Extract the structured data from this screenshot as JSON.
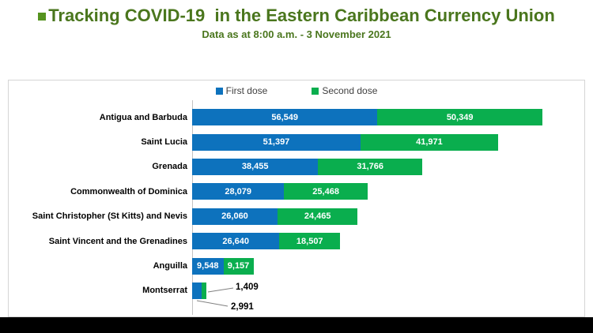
{
  "header": {
    "title": "Tracking COVID-19  in the Eastern Caribbean Currency Union",
    "subtitle": "Data as at 8:00 a.m. - 3 November 2021"
  },
  "chart_data": {
    "type": "bar",
    "orientation": "horizontal",
    "stacked": true,
    "legend_position": "top",
    "categories": [
      "Antigua and Barbuda",
      "Saint Lucia",
      "Grenada",
      "Commonwealth of Dominica",
      "Saint Christopher (St Kitts) and Nevis",
      "Saint Vincent and the Grenadines",
      "Anguilla",
      "Montserrat"
    ],
    "series": [
      {
        "name": "First dose",
        "color": "#0d72bd",
        "values": [
          56549,
          51397,
          38455,
          28079,
          26060,
          26640,
          9548,
          2991
        ],
        "labels": [
          "56,549",
          "51,397",
          "38,455",
          "28,079",
          "26,060",
          "26,640",
          "9,548",
          "2,991"
        ]
      },
      {
        "name": "Second dose",
        "color": "#0aae4e",
        "values": [
          50349,
          41971,
          31766,
          25468,
          24465,
          18507,
          9157,
          1409
        ],
        "labels": [
          "50,349",
          "41,971",
          "31,766",
          "25,468",
          "24,465",
          "18,507",
          "9,157",
          "1,409"
        ]
      }
    ]
  },
  "colors": {
    "title_green": "#4a761d",
    "first_dose_blue": "#0d72bd",
    "second_dose_green": "#0aae4e",
    "footer_bar": "#000000"
  }
}
